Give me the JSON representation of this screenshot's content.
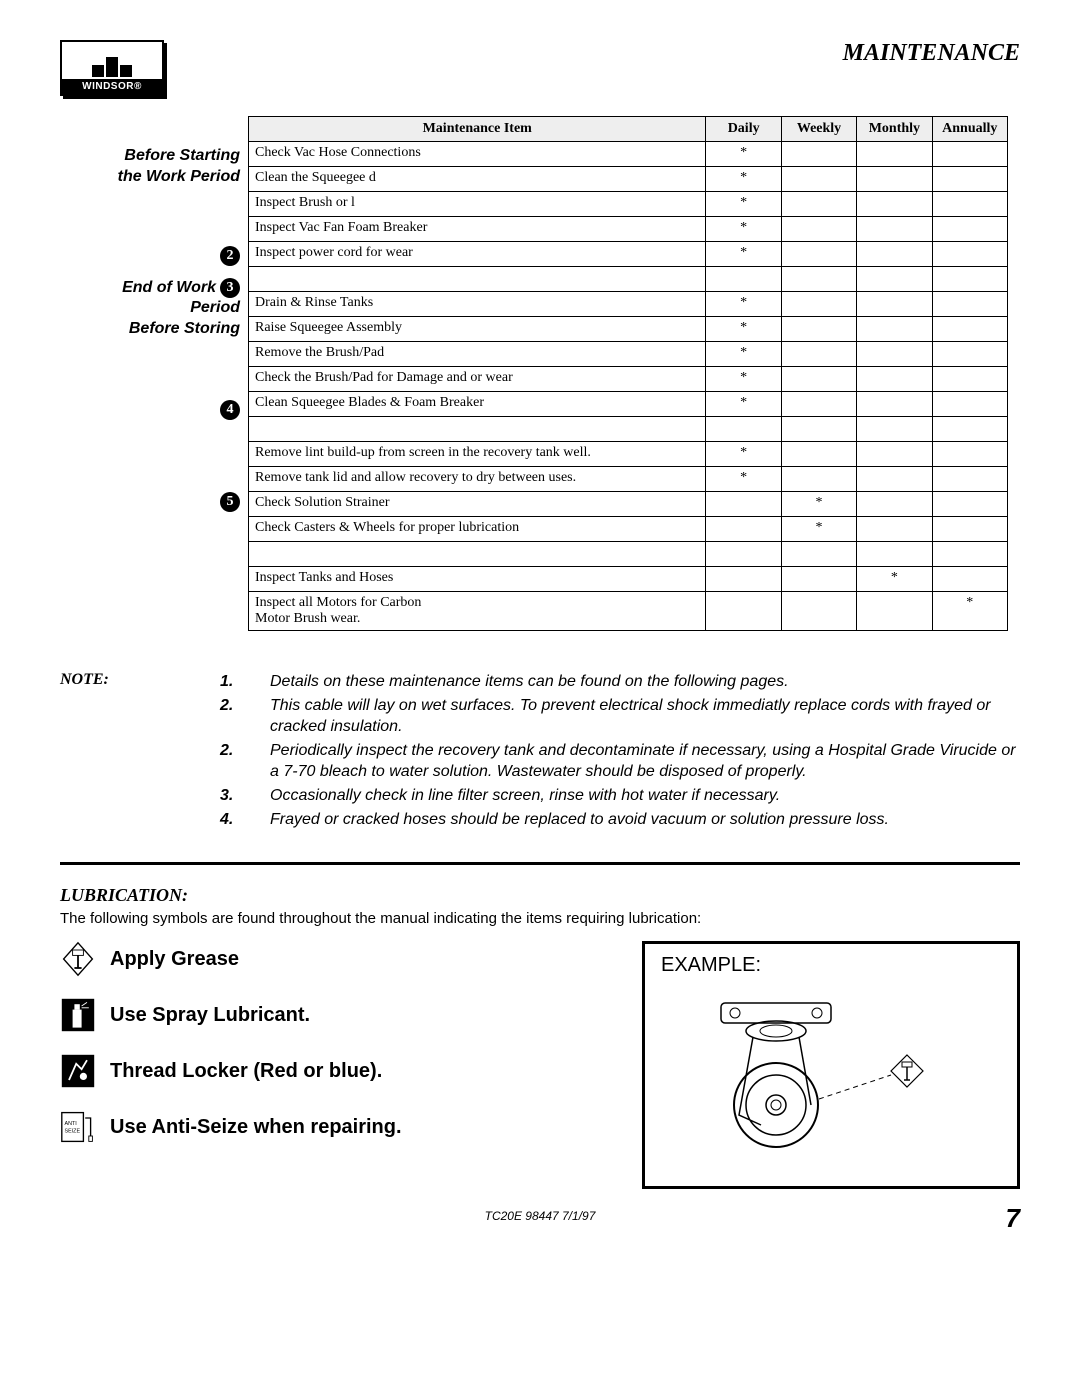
{
  "header": {
    "logo_text": "WINDSOR®",
    "page_title": "MAINTENANCE"
  },
  "side": {
    "before_start_1": "Before Starting",
    "before_start_2": "the Work Period",
    "end_1": "End of Work",
    "end_2": "Period",
    "end_3": "Before Storing"
  },
  "table": {
    "headers": {
      "item": "Maintenance Item",
      "daily": "Daily",
      "weekly": "Weekly",
      "monthly": "Monthly",
      "annually": "Annually"
    },
    "rows": [
      {
        "item": "Check Vac Hose Connections",
        "daily": "*",
        "weekly": "",
        "monthly": "",
        "annually": ""
      },
      {
        "item": "Clean the Squeegee        d",
        "daily": "*",
        "weekly": "",
        "monthly": "",
        "annually": ""
      },
      {
        "item": "Inspect Brush or l",
        "daily": "*",
        "weekly": "",
        "monthly": "",
        "annually": ""
      },
      {
        "item": "Inspect Vac Fan Foam Breaker",
        "daily": "*",
        "weekly": "",
        "monthly": "",
        "annually": ""
      },
      {
        "item": "Inspect power cord for wear",
        "daily": "*",
        "weekly": "",
        "monthly": "",
        "annually": ""
      }
    ],
    "rows2": [
      {
        "item": "Drain & Rinse Tanks",
        "daily": "*",
        "weekly": "",
        "monthly": "",
        "annually": ""
      },
      {
        "item": "Raise Squeegee Assembly",
        "daily": "*",
        "weekly": "",
        "monthly": "",
        "annually": ""
      },
      {
        "item": "Remove the Brush/Pad",
        "daily": "*",
        "weekly": "",
        "monthly": "",
        "annually": ""
      },
      {
        "item": "Check the Brush/Pad for Damage and or wear",
        "daily": "*",
        "weekly": "",
        "monthly": "",
        "annually": ""
      },
      {
        "item": "Clean Squeegee Blades & Foam Breaker",
        "daily": "*",
        "weekly": "",
        "monthly": "",
        "annually": ""
      }
    ],
    "rows3": [
      {
        "item": "Remove lint build-up from screen in the recovery tank well.",
        "daily": "*",
        "weekly": "",
        "monthly": "",
        "annually": ""
      },
      {
        "item": "Remove tank lid and allow recovery to dry between uses.",
        "daily": "*",
        "weekly": "",
        "monthly": "",
        "annually": ""
      },
      {
        "item": "Check Solution Strainer",
        "daily": "",
        "weekly": "*",
        "monthly": "",
        "annually": ""
      },
      {
        "item": "Check Casters & Wheels for proper lubrication",
        "daily": "",
        "weekly": "*",
        "monthly": "",
        "annually": ""
      }
    ],
    "rows4": [
      {
        "item": "Inspect Tanks and Hoses",
        "daily": "",
        "weekly": "",
        "monthly": "*",
        "annually": ""
      },
      {
        "item": "Inspect all Motors for Carbon\nMotor Brush wear.",
        "daily": "",
        "weekly": "",
        "monthly": "",
        "annually": "*"
      }
    ]
  },
  "notes": {
    "label": "NOTE:",
    "items": [
      {
        "n": "1.",
        "text": "Details on these maintenance items can be found on the following pages."
      },
      {
        "n": "2.",
        "text": "This cable will lay on wet surfaces. To prevent electrical shock immediatly replace cords with frayed or cracked insulation."
      },
      {
        "n": "2.",
        "text": "Periodically inspect the recovery tank and decontaminate if necessary, using a Hospital Grade Virucide or a 7-70 bleach to water solution. Wastewater should be disposed of properly."
      },
      {
        "n": "3.",
        "text": "Occasionally check in line filter screen, rinse with hot water if necessary."
      },
      {
        "n": "4.",
        "text": "Frayed or cracked hoses should be replaced to avoid vacuum or solution pressure loss."
      }
    ]
  },
  "lubrication": {
    "title": "LUBRICATION:",
    "intro": "The following symbols are found throughout the manual indicating the items requiring lubrication:",
    "items": [
      "Apply Grease",
      "Use Spray Lubricant.",
      "Thread Locker (Red or blue).",
      "Use Anti-Seize when repairing."
    ],
    "example_label": "EXAMPLE:"
  },
  "footer": {
    "code": "TC20E 98447  7/1/97",
    "page": "7"
  },
  "badges": {
    "b2": "2",
    "b3": "3",
    "b4": "4",
    "b5": "5"
  }
}
